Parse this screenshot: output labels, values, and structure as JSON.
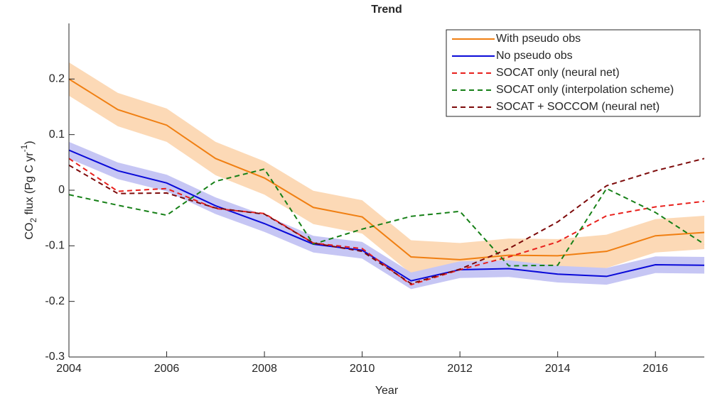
{
  "chart_data": {
    "type": "line",
    "title": "Trend",
    "xlabel": "Year",
    "ylabel": [
      "CO",
      "2",
      " flux (Pg C yr",
      "-1",
      ")"
    ],
    "x": [
      2004,
      2005,
      2006,
      2007,
      2008,
      2009,
      2010,
      2011,
      2012,
      2013,
      2014,
      2015,
      2016,
      2017
    ],
    "xlim": [
      2004,
      2017
    ],
    "xticks": [
      2004,
      2006,
      2008,
      2010,
      2012,
      2014,
      2016
    ],
    "ylim": [
      -0.3,
      0.3
    ],
    "yticks": [
      -0.3,
      -0.2,
      -0.1,
      0,
      0.1,
      0.2
    ],
    "legend": "top-right",
    "series": [
      {
        "name": "With pseudo obs",
        "color": "#f07f12",
        "dash": false,
        "spread": 0.03,
        "band_color": "#fcd9b6",
        "values": [
          0.2,
          0.145,
          0.117,
          0.057,
          0.022,
          -0.031,
          -0.048,
          -0.12,
          -0.125,
          -0.117,
          -0.118,
          -0.11,
          -0.082,
          -0.076
        ]
      },
      {
        "name": "No pseudo obs",
        "color": "#0a0ad8",
        "dash": false,
        "spread": 0.015,
        "band_color": "#c6c6f4",
        "values": [
          0.072,
          0.035,
          0.013,
          -0.028,
          -0.06,
          -0.097,
          -0.108,
          -0.163,
          -0.143,
          -0.141,
          -0.151,
          -0.155,
          -0.134,
          -0.135
        ]
      },
      {
        "name": "SOCAT only (neural net)",
        "color": "#e8201c",
        "dash": true,
        "values": [
          0.057,
          -0.002,
          0.003,
          -0.033,
          -0.042,
          -0.095,
          -0.105,
          -0.17,
          -0.143,
          -0.12,
          -0.093,
          -0.046,
          -0.03,
          -0.02
        ]
      },
      {
        "name": "SOCAT only (interpolation scheme)",
        "color": "#168017",
        "dash": true,
        "values": [
          -0.008,
          -0.027,
          -0.045,
          0.016,
          0.038,
          -0.097,
          -0.07,
          -0.047,
          -0.038,
          -0.136,
          -0.135,
          0.003,
          -0.04,
          -0.097
        ]
      },
      {
        "name": "SOCAT + SOCCOM (neural net)",
        "color": "#7d0a0a",
        "dash": true,
        "values": [
          0.045,
          -0.006,
          -0.005,
          -0.032,
          -0.043,
          -0.095,
          -0.11,
          -0.168,
          -0.142,
          -0.105,
          -0.057,
          0.008,
          0.035,
          0.057
        ]
      }
    ]
  }
}
